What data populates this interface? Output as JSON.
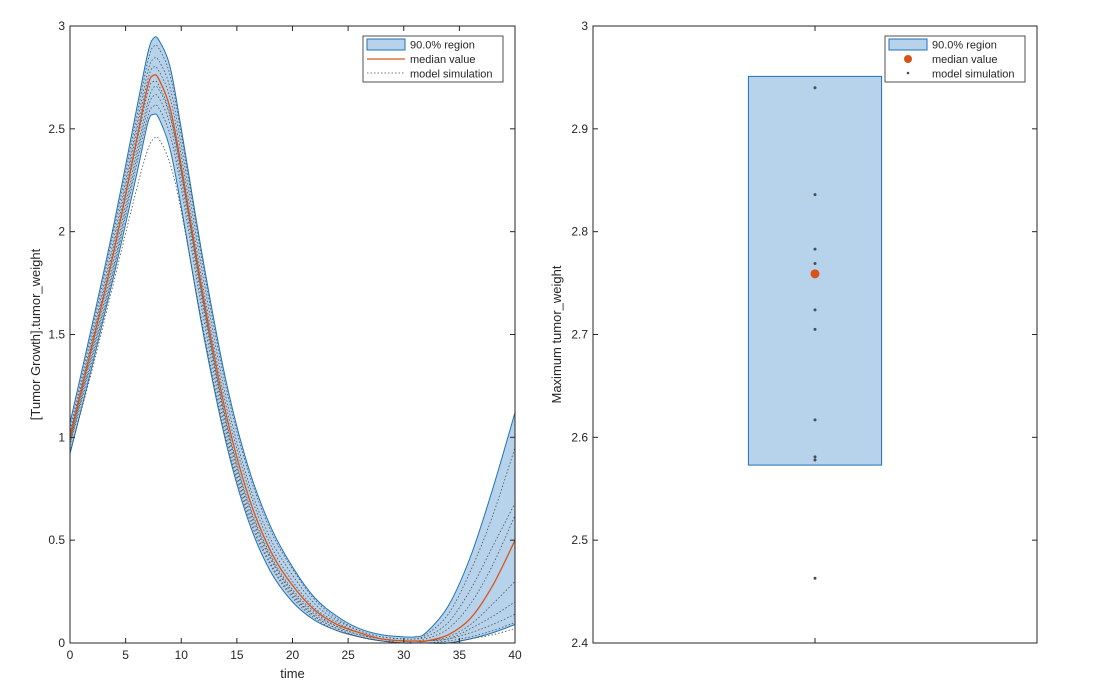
{
  "colors": {
    "band_fill": "#b7d3eb",
    "band_edge": "#1f72b8",
    "median": "#d95319",
    "sim": "#4d4d4d",
    "axis": "#262626"
  },
  "chart_data": [
    {
      "type": "line",
      "xlabel": "time",
      "ylabel": "[Tumor Growth].tumor_weight",
      "xlim": [
        0,
        40
      ],
      "ylim": [
        0,
        3
      ],
      "xticks": [
        0,
        5,
        10,
        15,
        20,
        25,
        30,
        35,
        40
      ],
      "yticks": [
        0,
        0.5,
        1,
        1.5,
        2,
        2.5,
        3
      ],
      "xtick_labels": [
        "0",
        "5",
        "10",
        "15",
        "20",
        "25",
        "30",
        "35",
        "40"
      ],
      "ytick_labels": [
        "0",
        "0.5",
        "1",
        "1.5",
        "2",
        "2.5",
        "3"
      ],
      "legend": {
        "placement": "top-right",
        "entries": [
          "90.0% region",
          "median value",
          "model simulation"
        ]
      },
      "band": {
        "name": "90.0% region",
        "x": [
          0,
          2,
          4,
          6,
          7,
          7.5,
          8,
          9,
          10,
          12,
          14,
          16,
          18,
          20,
          22,
          24,
          26,
          28,
          30,
          31,
          32,
          34,
          36,
          38,
          40
        ],
        "upper": [
          1.07,
          1.55,
          2.05,
          2.6,
          2.87,
          2.94,
          2.93,
          2.8,
          2.5,
          1.85,
          1.28,
          0.86,
          0.57,
          0.37,
          0.22,
          0.13,
          0.07,
          0.04,
          0.03,
          0.03,
          0.05,
          0.18,
          0.42,
          0.75,
          1.12
        ],
        "lower": [
          0.92,
          1.35,
          1.8,
          2.28,
          2.53,
          2.57,
          2.55,
          2.4,
          2.12,
          1.5,
          0.98,
          0.6,
          0.35,
          0.2,
          0.11,
          0.06,
          0.03,
          0.01,
          0.0,
          0.0,
          0.0,
          0.0,
          0.02,
          0.05,
          0.09
        ]
      },
      "median": {
        "name": "median value",
        "x": [
          0,
          2,
          4,
          6,
          7,
          7.5,
          8,
          9,
          10,
          12,
          14,
          16,
          18,
          20,
          22,
          24,
          26,
          28,
          30,
          31,
          32,
          34,
          36,
          38,
          40
        ],
        "y": [
          1.0,
          1.45,
          1.92,
          2.45,
          2.71,
          2.76,
          2.74,
          2.6,
          2.32,
          1.68,
          1.12,
          0.72,
          0.45,
          0.28,
          0.16,
          0.09,
          0.05,
          0.02,
          0.01,
          0.01,
          0.01,
          0.04,
          0.12,
          0.28,
          0.5
        ]
      },
      "simulations": {
        "name": "model simulation",
        "x": [
          0,
          2,
          4,
          6,
          7,
          7.5,
          8,
          9,
          10,
          12,
          14,
          16,
          18,
          20,
          22,
          24,
          26,
          28,
          30,
          31,
          32,
          34,
          36,
          38,
          40
        ],
        "runs": [
          [
            1.04,
            1.52,
            2.02,
            2.56,
            2.83,
            2.9,
            2.89,
            2.76,
            2.47,
            1.82,
            1.25,
            0.84,
            0.55,
            0.36,
            0.21,
            0.12,
            0.06,
            0.03,
            0.02,
            0.02,
            0.04,
            0.14,
            0.35,
            0.62,
            0.95
          ],
          [
            1.02,
            1.49,
            1.98,
            2.52,
            2.78,
            2.84,
            2.83,
            2.7,
            2.42,
            1.77,
            1.2,
            0.79,
            0.51,
            0.33,
            0.19,
            0.11,
            0.06,
            0.03,
            0.02,
            0.02,
            0.03,
            0.1,
            0.26,
            0.47,
            0.68
          ],
          [
            1.01,
            1.47,
            1.95,
            2.49,
            2.74,
            2.8,
            2.78,
            2.65,
            2.37,
            1.72,
            1.16,
            0.76,
            0.48,
            0.3,
            0.17,
            0.1,
            0.05,
            0.02,
            0.01,
            0.01,
            0.02,
            0.07,
            0.19,
            0.38,
            0.62
          ],
          [
            0.99,
            1.44,
            1.91,
            2.43,
            2.68,
            2.73,
            2.71,
            2.57,
            2.29,
            1.65,
            1.09,
            0.69,
            0.43,
            0.26,
            0.15,
            0.08,
            0.04,
            0.02,
            0.01,
            0.01,
            0.01,
            0.03,
            0.09,
            0.19,
            0.3
          ],
          [
            0.98,
            1.42,
            1.88,
            2.39,
            2.63,
            2.7,
            2.69,
            2.56,
            2.29,
            1.65,
            1.08,
            0.68,
            0.42,
            0.25,
            0.14,
            0.08,
            0.04,
            0.02,
            0.01,
            0.01,
            0.01,
            0.02,
            0.07,
            0.13,
            0.2
          ],
          [
            0.97,
            1.4,
            1.85,
            2.36,
            2.6,
            2.66,
            2.65,
            2.52,
            2.25,
            1.62,
            1.06,
            0.66,
            0.41,
            0.24,
            0.13,
            0.07,
            0.03,
            0.01,
            0.01,
            0.0,
            0.01,
            0.02,
            0.05,
            0.09,
            0.14
          ],
          [
            0.96,
            1.38,
            1.83,
            2.33,
            2.56,
            2.61,
            2.6,
            2.47,
            2.21,
            1.58,
            1.03,
            0.64,
            0.39,
            0.23,
            0.13,
            0.07,
            0.03,
            0.01,
            0.0,
            0.0,
            0.0,
            0.01,
            0.03,
            0.06,
            0.1
          ],
          [
            0.93,
            1.33,
            1.77,
            2.21,
            2.4,
            2.45,
            2.45,
            2.33,
            2.1,
            1.52,
            1.0,
            0.62,
            0.38,
            0.22,
            0.12,
            0.06,
            0.03,
            0.01,
            0.0,
            0.0,
            0.0,
            0.0,
            0.02,
            0.04,
            0.07
          ]
        ]
      }
    },
    {
      "type": "scatter",
      "xlabel": "",
      "ylabel": "Maximum tumor_weight",
      "ylim": [
        2.4,
        3
      ],
      "yticks": [
        2.4,
        2.5,
        2.6,
        2.7,
        2.8,
        2.9,
        3
      ],
      "ytick_labels": [
        "2.4",
        "2.5",
        "2.6",
        "2.7",
        "2.8",
        "2.9",
        "3"
      ],
      "legend": {
        "placement": "top-right",
        "entries": [
          "90.0% region",
          "median value",
          "model simulation"
        ]
      },
      "region": {
        "name": "90.0% region",
        "low": 2.573,
        "high": 2.951
      },
      "median": {
        "name": "median value",
        "value": 2.759
      },
      "simulations": {
        "name": "model simulation",
        "values": [
          2.94,
          2.836,
          2.783,
          2.769,
          2.724,
          2.705,
          2.617,
          2.581,
          2.578,
          2.463
        ]
      }
    }
  ]
}
